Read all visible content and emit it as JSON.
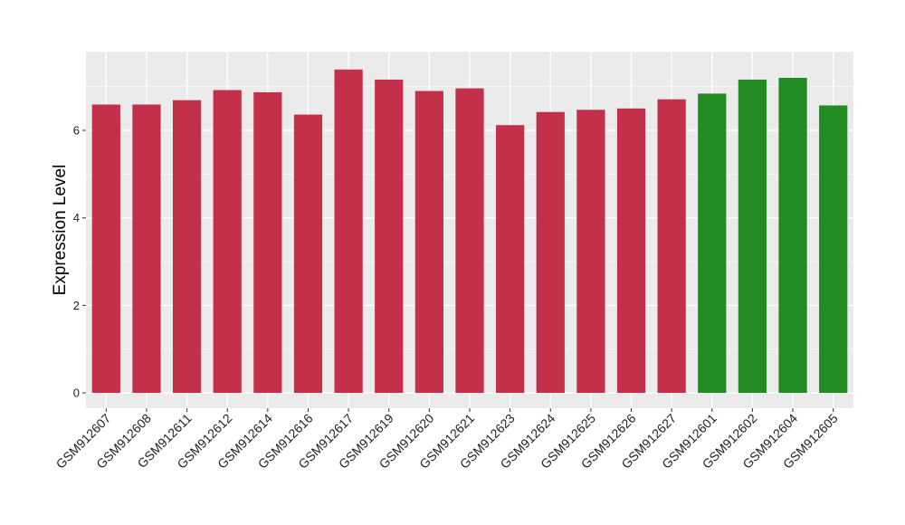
{
  "chart_data": {
    "type": "bar",
    "title": "",
    "xlabel": "",
    "ylabel": "Expression Level",
    "ylim": [
      -0.35,
      7.8
    ],
    "yticks": [
      0,
      2,
      4,
      6
    ],
    "grid": true,
    "panel_color": "#ebebeb",
    "categories": [
      "GSM912607",
      "GSM912608",
      "GSM912611",
      "GSM912612",
      "GSM912614",
      "GSM912616",
      "GSM912617",
      "GSM912619",
      "GSM912620",
      "GSM912621",
      "GSM912623",
      "GSM912624",
      "GSM912625",
      "GSM912626",
      "GSM912627",
      "GSM912601",
      "GSM912602",
      "GSM912604",
      "GSM912605"
    ],
    "values": [
      6.59,
      6.59,
      6.69,
      6.92,
      6.87,
      6.36,
      7.39,
      7.16,
      6.9,
      6.96,
      6.12,
      6.42,
      6.47,
      6.5,
      6.71,
      6.84,
      7.16,
      7.2,
      6.57
    ],
    "bar_colors": [
      "#c4304a",
      "#c4304a",
      "#c4304a",
      "#c4304a",
      "#c4304a",
      "#c4304a",
      "#c4304a",
      "#c4304a",
      "#c4304a",
      "#c4304a",
      "#c4304a",
      "#c4304a",
      "#c4304a",
      "#c4304a",
      "#c4304a",
      "#228b22",
      "#228b22",
      "#228b22",
      "#228b22"
    ]
  }
}
